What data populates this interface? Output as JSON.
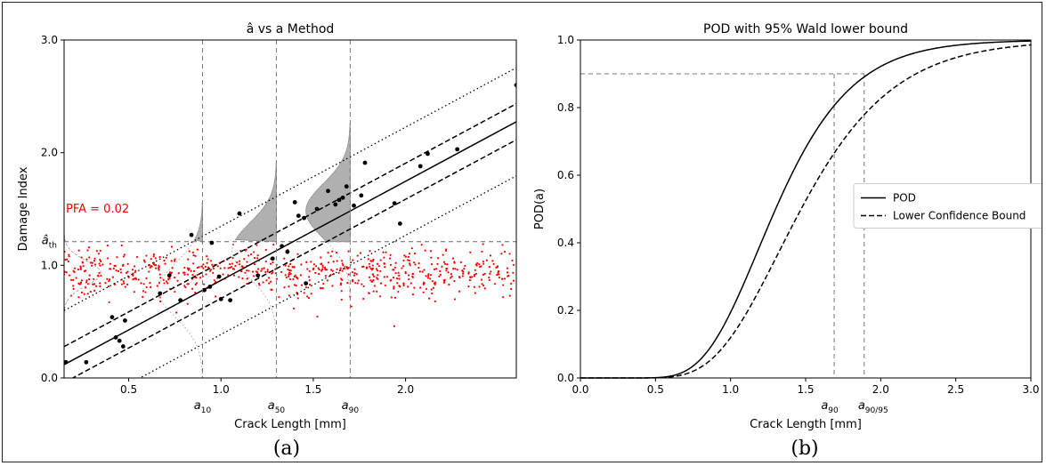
{
  "chart_data": [
    {
      "type": "scatter",
      "title": "â vs a Method",
      "xlabel": "Crack Length [mm]",
      "ylabel": "Damage Index",
      "xlim": [
        0.15,
        2.6
      ],
      "ylim": [
        0.0,
        3.0
      ],
      "xticks": [
        "0.5",
        "1.0",
        "1.5",
        "2.0"
      ],
      "yticks": [
        "0.0",
        "1.0",
        "2.0",
        "3.0"
      ],
      "threshold_label": "â_th",
      "threshold_value": 1.21,
      "pfa_label": "PFA = 0.02",
      "special_x_values": [
        0.9,
        1.3,
        1.7
      ],
      "special_x_labels": [
        "a10",
        "a50",
        "a90"
      ],
      "fit_line": {
        "intercept": -0.0138,
        "slope": 0.88
      },
      "confidence_offset": 0.16,
      "prediction_offset": 0.48,
      "hit_points": [
        [
          0.16,
          0.14
        ],
        [
          0.27,
          0.14
        ],
        [
          0.41,
          0.54
        ],
        [
          0.43,
          0.36
        ],
        [
          0.45,
          0.33
        ],
        [
          0.47,
          0.28
        ],
        [
          0.48,
          0.51
        ],
        [
          0.67,
          0.75
        ],
        [
          0.72,
          0.91
        ],
        [
          0.78,
          0.69
        ],
        [
          0.84,
          1.27
        ],
        [
          0.91,
          0.78
        ],
        [
          0.94,
          0.81
        ],
        [
          0.95,
          1.2
        ],
        [
          0.99,
          0.9
        ],
        [
          1.0,
          0.7
        ],
        [
          1.05,
          0.69
        ],
        [
          1.1,
          1.46
        ],
        [
          1.2,
          0.91
        ],
        [
          1.28,
          1.06
        ],
        [
          1.33,
          1.17
        ],
        [
          1.36,
          1.12
        ],
        [
          1.4,
          1.56
        ],
        [
          1.42,
          1.44
        ],
        [
          1.45,
          1.42
        ],
        [
          1.46,
          0.84
        ],
        [
          1.52,
          1.5
        ],
        [
          1.58,
          1.66
        ],
        [
          1.62,
          1.54
        ],
        [
          1.64,
          1.58
        ],
        [
          1.66,
          1.6
        ],
        [
          1.68,
          1.7
        ],
        [
          1.72,
          1.53
        ],
        [
          1.76,
          1.62
        ],
        [
          1.78,
          1.91
        ],
        [
          1.94,
          1.55
        ],
        [
          1.97,
          1.37
        ],
        [
          2.08,
          1.88
        ],
        [
          2.12,
          1.99
        ],
        [
          2.28,
          2.03
        ],
        [
          2.6,
          2.6
        ]
      ]
    },
    {
      "type": "line",
      "title": "POD with 95% Wald lower bound",
      "xlabel": "Crack Length [mm]",
      "ylabel": "POD(a)",
      "xlim": [
        0.0,
        3.0
      ],
      "ylim": [
        0.0,
        1.0
      ],
      "xticks": [
        "0.0",
        "0.5",
        "1.0",
        "1.5",
        "2.0",
        "2.5",
        "3.0"
      ],
      "yticks": [
        "0.0",
        "0.2",
        "0.4",
        "0.6",
        "0.8",
        "1.0"
      ],
      "series": [
        {
          "name": "POD",
          "mu": 1.3,
          "sigma": 0.304,
          "style": "solid"
        },
        {
          "name": "Lower Confidence Bound",
          "mu": 1.47,
          "sigma": 0.327,
          "style": "dashed"
        }
      ],
      "reference_level": 0.9,
      "special_x_values": [
        1.69,
        1.89
      ],
      "special_x_labels": [
        "a90",
        "a90/95"
      ],
      "legend_position": "center-right"
    }
  ],
  "captions": {
    "left": "(a)",
    "right": "(b)"
  },
  "colors": {
    "noise": "#ff0000",
    "pfa_text": "#ff0000",
    "fill": "#b0b0b0",
    "pfa_fill": "#f08080"
  }
}
